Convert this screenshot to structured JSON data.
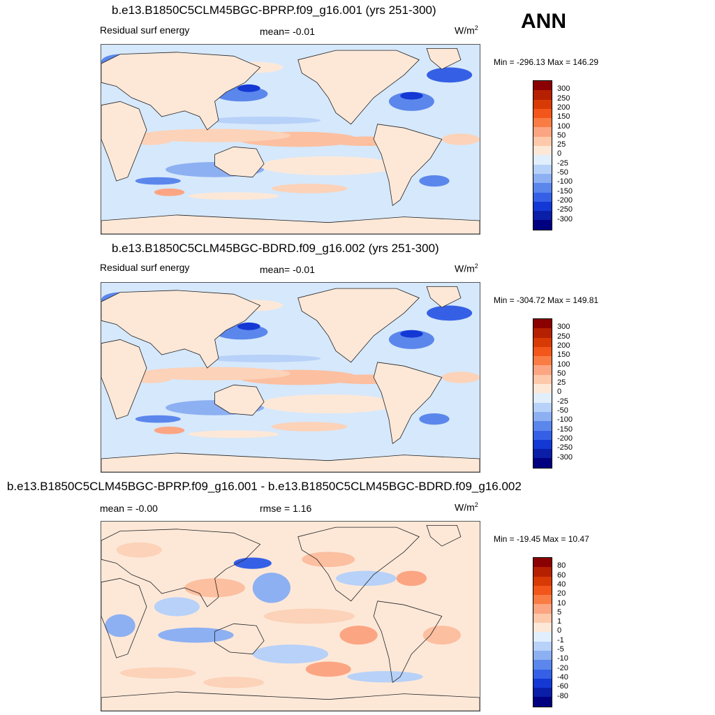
{
  "season": "ANN",
  "panels": [
    {
      "title": "b.e13.B1850C5CLM45BGC-BPRP.f09_g16.001 (yrs 251-300)",
      "left_label": "Residual surf energy",
      "mid_label": "mean=  -0.01",
      "units_base": "W/m",
      "units_sup": "2",
      "minmax": "Min = -296.13 Max = 146.29",
      "colorbar_labels": [
        "300",
        "250",
        "200",
        "150",
        "100",
        "50",
        "25",
        "0",
        "-25",
        "-50",
        "-100",
        "-150",
        "-200",
        "-250",
        "-300"
      ]
    },
    {
      "title": "b.e13.B1850C5CLM45BGC-BDRD.f09_g16.002 (yrs 251-300)",
      "left_label": "Residual surf energy",
      "mid_label": "mean=  -0.01",
      "units_base": "W/m",
      "units_sup": "2",
      "minmax": "Min = -304.72 Max = 149.81",
      "colorbar_labels": [
        "300",
        "250",
        "200",
        "150",
        "100",
        "50",
        "25",
        "0",
        "-25",
        "-50",
        "-100",
        "-150",
        "-200",
        "-250",
        "-300"
      ]
    },
    {
      "title": "b.e13.B1850C5CLM45BGC-BPRP.f09_g16.001 - b.e13.B1850C5CLM45BGC-BDRD.f09_g16.002",
      "left_label": "mean =  -0.00",
      "mid_label": "rmse =   1.16",
      "units_base": "W/m",
      "units_sup": "2",
      "minmax": "Min = -19.45 Max =  10.47",
      "colorbar_labels": [
        "80",
        "60",
        "40",
        "20",
        "10",
        "5",
        "1",
        "0",
        "-1",
        "-5",
        "-10",
        "-20",
        "-40",
        "-60",
        "-80"
      ]
    }
  ],
  "colorbar_colors": [
    "#8b0000",
    "#b52000",
    "#d83a05",
    "#f2561a",
    "#fa7c45",
    "#fca582",
    "#fdc9aa",
    "#fde8d8",
    "#e1eefc",
    "#b7d1f8",
    "#8db0f2",
    "#5b87ec",
    "#3560e6",
    "#1438d4",
    "#0a1ea8",
    "#000080"
  ],
  "chart_data": [
    {
      "type": "heatmap",
      "title": "b.e13.B1850C5CLM45BGC-BPRP.f09_g16.001 (yrs 251-300)",
      "variable": "Residual surf energy",
      "units": "W/m2",
      "mean": -0.01,
      "min": -296.13,
      "max": 146.29,
      "levels": [
        -300,
        -250,
        -200,
        -150,
        -100,
        -50,
        -25,
        0,
        25,
        50,
        100,
        150,
        200,
        250,
        300
      ]
    },
    {
      "type": "heatmap",
      "title": "b.e13.B1850C5CLM45BGC-BDRD.f09_g16.002 (yrs 251-300)",
      "variable": "Residual surf energy",
      "units": "W/m2",
      "mean": -0.01,
      "min": -304.72,
      "max": 149.81,
      "levels": [
        -300,
        -250,
        -200,
        -150,
        -100,
        -50,
        -25,
        0,
        25,
        50,
        100,
        150,
        200,
        250,
        300
      ]
    },
    {
      "type": "heatmap",
      "title": "b.e13.B1850C5CLM45BGC-BPRP.f09_g16.001 - b.e13.B1850C5CLM45BGC-BDRD.f09_g16.002",
      "units": "W/m2",
      "mean": -0.0,
      "rmse": 1.16,
      "min": -19.45,
      "max": 10.47,
      "levels": [
        -80,
        -60,
        -40,
        -20,
        -10,
        -5,
        -1,
        0,
        1,
        5,
        10,
        20,
        40,
        60,
        80
      ]
    }
  ]
}
